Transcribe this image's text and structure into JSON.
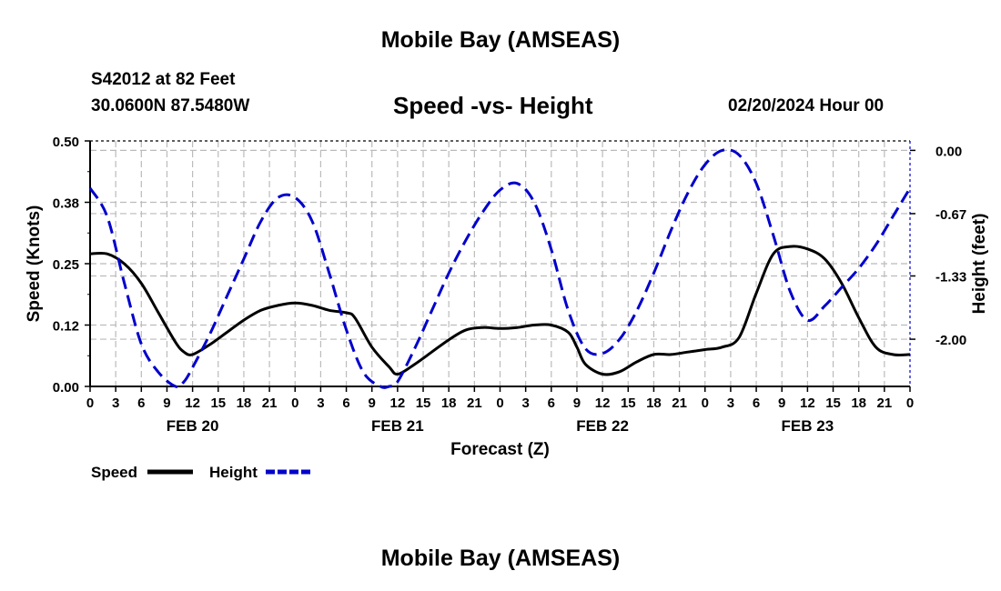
{
  "header": {
    "title": "Mobile Bay (AMSEAS)",
    "station": "S42012 at 82 Feet",
    "coords": "30.0600N  87.5480W",
    "subtitle": "Speed -vs- Height",
    "datetime": "02/20/2024 Hour 00"
  },
  "footer": {
    "title": "Mobile Bay (AMSEAS)"
  },
  "colors": {
    "speed": "#000000",
    "height": "#0000cc",
    "grid": "#bbbbbb"
  },
  "chart_data": {
    "type": "line",
    "title": "Speed -vs- Height",
    "xlabel": "Forecast (Z)",
    "ylabel": "Speed (Knots)",
    "y2label": "Height (feet)",
    "x_range": [
      0,
      96
    ],
    "ylim": [
      0,
      0.5
    ],
    "y2lim": [
      -2.5,
      0.1
    ],
    "y_ticks": [
      {
        "value": 0.0,
        "label": "0.00"
      },
      {
        "value": 0.125,
        "label": "0.12"
      },
      {
        "value": 0.25,
        "label": "0.25"
      },
      {
        "value": 0.375,
        "label": "0.38"
      },
      {
        "value": 0.5,
        "label": "0.50"
      }
    ],
    "y2_ticks": [
      {
        "value": 0.0,
        "label": "0.00"
      },
      {
        "value": -0.67,
        "label": "-0.67"
      },
      {
        "value": -1.33,
        "label": "-1.33"
      },
      {
        "value": -2.0,
        "label": "-2.00"
      }
    ],
    "x_tick_labels": [
      "0",
      "3",
      "6",
      "9",
      "12",
      "15",
      "18",
      "21",
      "0",
      "3",
      "6",
      "9",
      "12",
      "15",
      "18",
      "21",
      "0",
      "3",
      "6",
      "9",
      "12",
      "15",
      "18",
      "21",
      "0",
      "3",
      "6",
      "9",
      "12",
      "15",
      "18",
      "21",
      "0"
    ],
    "day_labels": [
      {
        "hour": 12,
        "label": "FEB 20"
      },
      {
        "hour": 36,
        "label": "FEB 21"
      },
      {
        "hour": 60,
        "label": "FEB 22"
      },
      {
        "hour": 84,
        "label": "FEB 23"
      }
    ],
    "legend": [
      {
        "name": "Speed",
        "style": "solid"
      },
      {
        "name": "Height",
        "style": "dashed"
      }
    ],
    "series": [
      {
        "name": "Speed",
        "axis": "left",
        "x": [
          0,
          2,
          4,
          6,
          8,
          10,
          11,
          12,
          14,
          16,
          18,
          20,
          22,
          24,
          26,
          28,
          30,
          31,
          33,
          35,
          36,
          38,
          40,
          42,
          44,
          46,
          48,
          50,
          52,
          54,
          56,
          57,
          58,
          60,
          62,
          64,
          66,
          68,
          70,
          72,
          74,
          76,
          78,
          80,
          82,
          84,
          86,
          88,
          90,
          92,
          94,
          96
        ],
        "values": [
          0.27,
          0.27,
          0.25,
          0.21,
          0.15,
          0.09,
          0.07,
          0.065,
          0.085,
          0.11,
          0.135,
          0.155,
          0.165,
          0.17,
          0.165,
          0.155,
          0.15,
          0.14,
          0.08,
          0.04,
          0.025,
          0.045,
          0.07,
          0.095,
          0.115,
          0.12,
          0.118,
          0.12,
          0.125,
          0.125,
          0.11,
          0.08,
          0.045,
          0.025,
          0.03,
          0.05,
          0.065,
          0.065,
          0.07,
          0.075,
          0.08,
          0.1,
          0.19,
          0.27,
          0.285,
          0.28,
          0.26,
          0.21,
          0.14,
          0.08,
          0.065,
          0.065
        ]
      },
      {
        "name": "Height",
        "axis": "right",
        "x": [
          0,
          2,
          4,
          6,
          8,
          10,
          11,
          12,
          14,
          16,
          18,
          20,
          22,
          24,
          26,
          28,
          30,
          32,
          34,
          35,
          36,
          38,
          40,
          42,
          44,
          46,
          48,
          50,
          52,
          54,
          56,
          58,
          60,
          62,
          64,
          66,
          68,
          70,
          72,
          74,
          76,
          78,
          80,
          82,
          84,
          86,
          88,
          90,
          92,
          94,
          96
        ],
        "values": [
          -0.4,
          -0.7,
          -1.4,
          -2.05,
          -2.35,
          -2.5,
          -2.45,
          -2.3,
          -1.95,
          -1.55,
          -1.15,
          -0.75,
          -0.5,
          -0.5,
          -0.75,
          -1.3,
          -1.9,
          -2.35,
          -2.5,
          -2.5,
          -2.45,
          -2.1,
          -1.7,
          -1.3,
          -0.95,
          -0.65,
          -0.42,
          -0.35,
          -0.55,
          -1.05,
          -1.7,
          -2.1,
          -2.15,
          -2.0,
          -1.7,
          -1.3,
          -0.85,
          -0.45,
          -0.15,
          0.0,
          -0.05,
          -0.35,
          -0.9,
          -1.5,
          -1.8,
          -1.65,
          -1.45,
          -1.25,
          -1.0,
          -0.7,
          -0.4
        ]
      }
    ]
  }
}
